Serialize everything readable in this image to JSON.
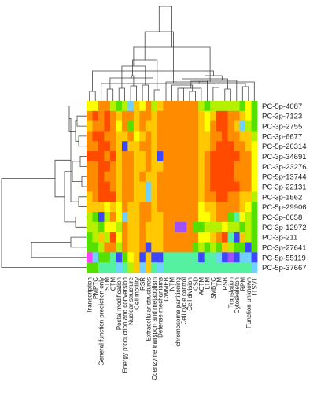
{
  "chart_data": {
    "type": "heatmap",
    "title": "",
    "xlabel": "",
    "ylabel": "",
    "legend": "none",
    "color_scale": [
      "#ff0000",
      "#ff4a00",
      "#ff8c00",
      "#ffc800",
      "#ffff00",
      "#b4f000",
      "#55e000",
      "#55f0a0",
      "#70d0ff",
      "#3c46ff",
      "#a050ff",
      "#ff40ff"
    ],
    "rows": [
      "PC-5p-4087",
      "PC-3p-7123",
      "PC-3p-2755",
      "PC-3p-6677",
      "PC-5p-26314",
      "PC-3p-34691",
      "PC-3p-23276",
      "PC-5p-13744",
      "PC-3p-22131",
      "PC-3p-1562",
      "PC-5p-29906",
      "PC-3p-6658",
      "PC-3p-12972",
      "PC-3p-211",
      "PC-3p-27641",
      "PC-5p-55119",
      "PC-5p-37667"
    ],
    "columns": [
      "Transcription",
      "PMPTC",
      "General function prediction only",
      "STM",
      "CTM",
      "Postal modification",
      "Energy production and conversion",
      "Nuclear structure",
      "Cell motility",
      "RSR",
      "Extracellular structures",
      "Coenzyme transport and metabolism",
      "Defense mechanisms",
      "CWMEB",
      "NTM",
      "chromosome partitioning",
      "Cell cycle control",
      "Cell division",
      "CSD",
      "ACTM",
      "LTM",
      "SMBTC",
      "ITM",
      "RSB",
      "Translation",
      "Cytoskeleton",
      "RPM",
      "Function unknown",
      "ITSVT"
    ],
    "values": [
      [
        4,
        4,
        2,
        2,
        5,
        6,
        5,
        8,
        3,
        4,
        2,
        5,
        3,
        2,
        2,
        2,
        2,
        2,
        2,
        5,
        6,
        5,
        5,
        5,
        5,
        5,
        6,
        4,
        6
      ],
      [
        2,
        1,
        2,
        1,
        2,
        3,
        2,
        2,
        3,
        2,
        2,
        3,
        2,
        2,
        2,
        2,
        2,
        2,
        2,
        3,
        4,
        3,
        1,
        1,
        2,
        2,
        3,
        4,
        6
      ],
      [
        3,
        2,
        2,
        1,
        2,
        4,
        2,
        6,
        3,
        2,
        3,
        3,
        2,
        2,
        2,
        2,
        2,
        2,
        2,
        3,
        4,
        2,
        1,
        1,
        2,
        3,
        8,
        5,
        6
      ],
      [
        2,
        1,
        1,
        2,
        2,
        3,
        3,
        2,
        4,
        3,
        2,
        3,
        2,
        2,
        2,
        2,
        2,
        2,
        2,
        3,
        3,
        2,
        2,
        1,
        2,
        2,
        3,
        3,
        5
      ],
      [
        2,
        2,
        1,
        1,
        2,
        3,
        9,
        3,
        3,
        2,
        2,
        3,
        2,
        2,
        2,
        2,
        2,
        2,
        2,
        3,
        3,
        2,
        1,
        1,
        1,
        2,
        2,
        3,
        4
      ],
      [
        1,
        1,
        1,
        2,
        1,
        3,
        2,
        2,
        3,
        3,
        2,
        3,
        9,
        2,
        2,
        2,
        2,
        2,
        2,
        3,
        2,
        1,
        1,
        1,
        1,
        1,
        2,
        2,
        4
      ],
      [
        2,
        2,
        1,
        1,
        2,
        3,
        2,
        2,
        3,
        3,
        2,
        3,
        3,
        2,
        2,
        2,
        2,
        2,
        2,
        3,
        2,
        1,
        1,
        1,
        1,
        2,
        2,
        2,
        4
      ],
      [
        2,
        2,
        1,
        2,
        2,
        3,
        2,
        2,
        3,
        2,
        3,
        3,
        2,
        2,
        2,
        2,
        2,
        2,
        2,
        3,
        2,
        1,
        1,
        1,
        1,
        2,
        2,
        2,
        4
      ],
      [
        2,
        2,
        1,
        1,
        2,
        3,
        2,
        2,
        3,
        3,
        8,
        3,
        2,
        2,
        2,
        2,
        2,
        2,
        2,
        3,
        2,
        1,
        1,
        1,
        1,
        1,
        2,
        2,
        4
      ],
      [
        3,
        2,
        1,
        1,
        1,
        3,
        2,
        2,
        3,
        3,
        8,
        3,
        2,
        2,
        2,
        2,
        2,
        2,
        2,
        3,
        2,
        2,
        1,
        1,
        2,
        2,
        3,
        3,
        5
      ],
      [
        3,
        3,
        3,
        4,
        3,
        4,
        2,
        3,
        3,
        2,
        2,
        3,
        2,
        2,
        2,
        2,
        2,
        2,
        2,
        4,
        3,
        3,
        2,
        2,
        2,
        2,
        3,
        4,
        6
      ],
      [
        5,
        6,
        9,
        5,
        2,
        4,
        8,
        3,
        3,
        2,
        2,
        3,
        3,
        2,
        2,
        2,
        2,
        2,
        2,
        4,
        4,
        3,
        2,
        2,
        6,
        7,
        4,
        5,
        6
      ],
      [
        5,
        5,
        6,
        4,
        4,
        5,
        2,
        3,
        3,
        2,
        3,
        3,
        3,
        2,
        2,
        10,
        10,
        2,
        6,
        6,
        5,
        5,
        5,
        4,
        5,
        5,
        6,
        5,
        6
      ],
      [
        6,
        5,
        3,
        5,
        1,
        4,
        2,
        3,
        3,
        2,
        3,
        3,
        3,
        2,
        2,
        2,
        2,
        2,
        2,
        4,
        4,
        3,
        2,
        1,
        7,
        9,
        3,
        5,
        6
      ],
      [
        6,
        6,
        5,
        2,
        2,
        5,
        2,
        3,
        3,
        2,
        9,
        3,
        3,
        2,
        2,
        2,
        2,
        2,
        6,
        5,
        6,
        5,
        6,
        3,
        5,
        6,
        6,
        9,
        6
      ],
      [
        11,
        8,
        6,
        6,
        7,
        9,
        6,
        4,
        3,
        9,
        3,
        9,
        9,
        7,
        7,
        7,
        7,
        7,
        7,
        9,
        7,
        7,
        8,
        9,
        10,
        9,
        8,
        8,
        9
      ],
      [
        6,
        6,
        7,
        7,
        7,
        8,
        7,
        5,
        3,
        8,
        3,
        7,
        8,
        7,
        7,
        7,
        7,
        7,
        7,
        7,
        7,
        7,
        7,
        7,
        7,
        7,
        7,
        7,
        8
      ]
    ]
  }
}
